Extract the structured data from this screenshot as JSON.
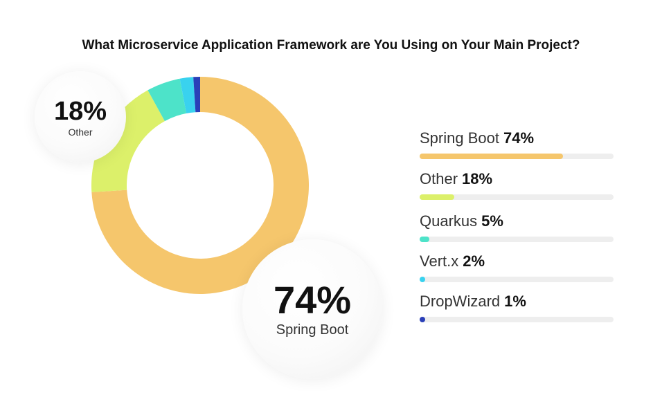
{
  "chart_data": {
    "type": "pie",
    "title": "What Microservice Application Framework are You Using on Your Main Project?",
    "slices": [
      {
        "label": "Spring Boot",
        "value": 74,
        "value_text": "74%",
        "color": "#f5c66c"
      },
      {
        "label": "Other",
        "value": 18,
        "value_text": "18%",
        "color": "#dcf06a"
      },
      {
        "label": "Quarkus",
        "value": 5,
        "value_text": "5%",
        "color": "#4de3c9"
      },
      {
        "label": "Vert.x",
        "value": 2,
        "value_text": "2%",
        "color": "#39d2ef"
      },
      {
        "label": "DropWizard",
        "value": 1,
        "value_text": "1%",
        "color": "#2a3fb8"
      }
    ],
    "callouts": [
      {
        "value_text": "18%",
        "label": "Other"
      },
      {
        "value_text": "74%",
        "label": "Spring Boot"
      }
    ],
    "legend": "right"
  }
}
